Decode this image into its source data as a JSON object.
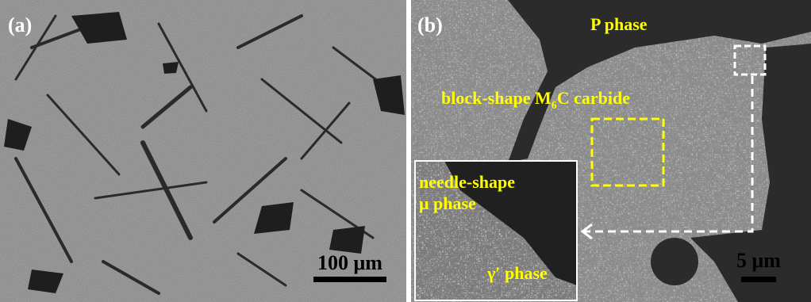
{
  "panels": [
    {
      "label": "(a)",
      "scale_bar": "100 μm"
    },
    {
      "label": "(b)",
      "scale_bar": "5 μm",
      "annotations": {
        "p_phase": "P phase",
        "carbide": [
          "block-shape M",
          "6",
          "C carbide"
        ]
      },
      "inset": {
        "labels": [
          "needle-shape",
          "μ phase",
          "γ′ phase"
        ]
      }
    }
  ]
}
